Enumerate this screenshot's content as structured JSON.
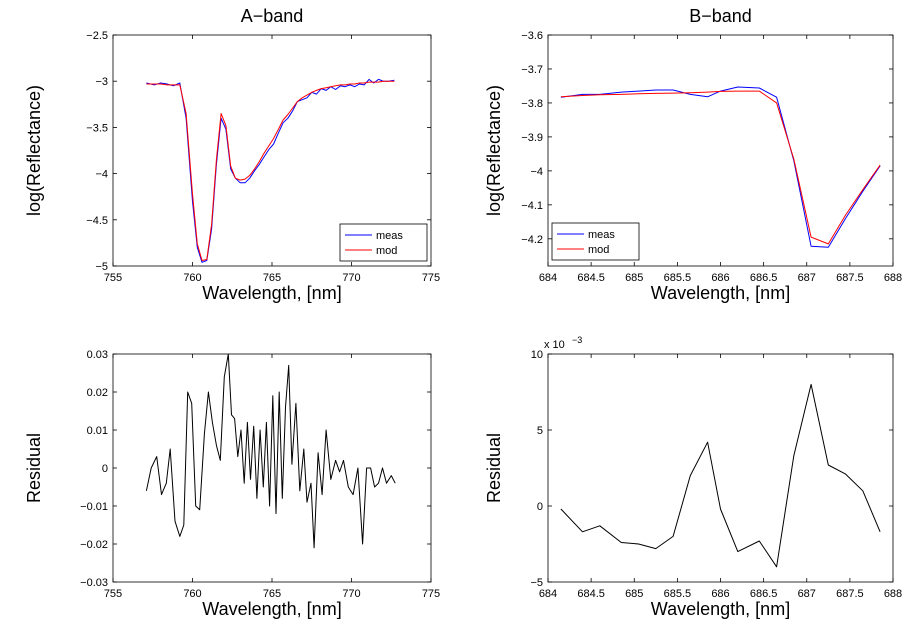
{
  "chart_data": [
    {
      "type": "line",
      "title": "A−band",
      "xlabel": "Wavelength, [nm]",
      "ylabel": "log(Reflectance)",
      "xlim": [
        755,
        775
      ],
      "ylim": [
        -5,
        -2.5
      ],
      "xticks": [
        755,
        760,
        765,
        770,
        775
      ],
      "xtick_labels": [
        "755",
        "760",
        "765",
        "770",
        "775"
      ],
      "yticks": [
        -5,
        -4.5,
        -4,
        -3.5,
        -3,
        -2.5
      ],
      "ytick_labels": [
        "−5",
        "−4.5",
        "−4",
        "−3.5",
        "−3",
        "−2.5"
      ],
      "exponent_label": "",
      "grid": false,
      "legend": "bottom-right",
      "series": [
        {
          "name": "meas",
          "color": "#0000ff",
          "x": [
            757.1,
            757.6,
            758.0,
            758.4,
            758.8,
            759.2,
            759.6,
            760.0,
            760.3,
            760.6,
            760.9,
            761.2,
            761.5,
            761.8,
            762.1,
            762.4,
            762.7,
            763.0,
            763.3,
            763.6,
            763.9,
            764.2,
            764.5,
            764.8,
            765.1,
            765.4,
            765.7,
            766.0,
            766.3,
            766.6,
            766.9,
            767.2,
            767.5,
            767.8,
            768.1,
            768.4,
            768.7,
            769.0,
            769.3,
            769.6,
            769.9,
            770.2,
            770.5,
            770.8,
            771.1,
            771.4,
            771.7,
            772.0,
            772.3,
            772.7
          ],
          "y": [
            -3.02,
            -3.04,
            -3.02,
            -3.03,
            -3.05,
            -3.02,
            -3.4,
            -4.3,
            -4.8,
            -4.96,
            -4.94,
            -4.6,
            -3.9,
            -3.4,
            -3.52,
            -3.95,
            -4.05,
            -4.1,
            -4.1,
            -4.05,
            -3.97,
            -3.9,
            -3.82,
            -3.74,
            -3.68,
            -3.56,
            -3.45,
            -3.4,
            -3.32,
            -3.22,
            -3.2,
            -3.18,
            -3.12,
            -3.14,
            -3.08,
            -3.1,
            -3.06,
            -3.09,
            -3.05,
            -3.06,
            -3.04,
            -3.06,
            -3.03,
            -3.04,
            -2.98,
            -3.02,
            -2.98,
            -3.0,
            -3.0,
            -2.99
          ]
        },
        {
          "name": "mod",
          "color": "#ff0000",
          "x": [
            757.1,
            757.6,
            758.0,
            758.4,
            758.8,
            759.2,
            759.6,
            760.0,
            760.3,
            760.6,
            760.9,
            761.2,
            761.5,
            761.8,
            762.1,
            762.4,
            762.7,
            763.0,
            763.3,
            763.6,
            763.9,
            764.2,
            764.5,
            764.8,
            765.1,
            765.4,
            765.7,
            766.0,
            766.3,
            766.6,
            766.9,
            767.2,
            767.5,
            767.8,
            768.1,
            768.4,
            768.7,
            769.0,
            769.3,
            769.6,
            769.9,
            770.2,
            770.5,
            770.8,
            771.1,
            771.4,
            771.7,
            772.0,
            772.3,
            772.7
          ],
          "y": [
            -3.03,
            -3.03,
            -3.03,
            -3.04,
            -3.04,
            -3.04,
            -3.35,
            -4.22,
            -4.76,
            -4.94,
            -4.93,
            -4.55,
            -3.85,
            -3.35,
            -3.48,
            -3.92,
            -4.05,
            -4.07,
            -4.06,
            -4.02,
            -3.95,
            -3.87,
            -3.78,
            -3.7,
            -3.62,
            -3.52,
            -3.42,
            -3.36,
            -3.29,
            -3.22,
            -3.18,
            -3.15,
            -3.12,
            -3.1,
            -3.08,
            -3.07,
            -3.06,
            -3.05,
            -3.04,
            -3.04,
            -3.03,
            -3.03,
            -3.02,
            -3.02,
            -3.01,
            -3.01,
            -3.01,
            -3.0,
            -3.0,
            -3.0
          ]
        }
      ]
    },
    {
      "type": "line",
      "title": "B−band",
      "xlabel": "Wavelength, [nm]",
      "ylabel": "log(Reflectance)",
      "xlim": [
        684,
        688
      ],
      "ylim": [
        -4.28,
        -3.6
      ],
      "xticks": [
        684,
        684.5,
        685,
        685.5,
        686,
        686.5,
        687,
        687.5,
        688
      ],
      "xtick_labels": [
        "684",
        "684.5",
        "685",
        "685.5",
        "686",
        "686.5",
        "687",
        "687.5",
        "688"
      ],
      "yticks": [
        -4.2,
        -4.1,
        -4,
        -3.9,
        -3.8,
        -3.7,
        -3.6
      ],
      "ytick_labels": [
        "−4.2",
        "−4.1",
        "−4",
        "−3.9",
        "−3.8",
        "−3.7",
        "−3.6"
      ],
      "exponent_label": "",
      "grid": false,
      "legend": "bottom-left",
      "series": [
        {
          "name": "meas",
          "color": "#0000ff",
          "x": [
            684.15,
            684.4,
            684.6,
            684.85,
            685.05,
            685.25,
            685.45,
            685.65,
            685.85,
            686.0,
            686.2,
            686.45,
            686.65,
            686.85,
            687.05,
            687.25,
            687.45,
            687.65,
            687.85
          ],
          "y": [
            -3.783,
            -3.775,
            -3.775,
            -3.768,
            -3.765,
            -3.762,
            -3.762,
            -3.775,
            -3.782,
            -3.765,
            -3.753,
            -3.756,
            -3.783,
            -3.97,
            -4.222,
            -4.225,
            -4.14,
            -4.06,
            -3.985
          ]
        },
        {
          "name": "mod",
          "color": "#ff0000",
          "x": [
            684.15,
            684.4,
            684.6,
            684.85,
            685.05,
            685.25,
            685.45,
            685.65,
            685.85,
            686.0,
            686.2,
            686.45,
            686.65,
            686.85,
            687.05,
            687.25,
            687.45,
            687.65,
            687.85
          ],
          "y": [
            -3.782,
            -3.778,
            -3.776,
            -3.775,
            -3.773,
            -3.772,
            -3.771,
            -3.77,
            -3.768,
            -3.766,
            -3.765,
            -3.765,
            -3.8,
            -3.965,
            -4.195,
            -4.215,
            -4.13,
            -4.055,
            -3.983
          ]
        }
      ]
    },
    {
      "type": "line",
      "title": "",
      "xlabel": "Wavelength, [nm]",
      "ylabel": "Residual",
      "xlim": [
        755,
        775
      ],
      "ylim": [
        -0.03,
        0.03
      ],
      "xticks": [
        755,
        760,
        765,
        770,
        775
      ],
      "xtick_labels": [
        "755",
        "760",
        "765",
        "770",
        "775"
      ],
      "yticks": [
        -0.03,
        -0.02,
        -0.01,
        0,
        0.01,
        0.02,
        0.03
      ],
      "ytick_labels": [
        "−0.03",
        "−0.02",
        "−0.01",
        "0",
        "0.01",
        "0.02",
        "0.03"
      ],
      "exponent_label": "",
      "grid": false,
      "legend": "none",
      "series": [
        {
          "color": "#000000",
          "x": [
            757.1,
            757.4,
            757.75,
            758.05,
            758.35,
            758.6,
            758.9,
            759.2,
            759.45,
            759.7,
            759.95,
            760.2,
            760.45,
            760.75,
            761.0,
            761.25,
            761.5,
            761.75,
            762.0,
            762.25,
            762.45,
            762.65,
            762.85,
            763.05,
            763.25,
            763.45,
            763.65,
            763.85,
            764.05,
            764.25,
            764.45,
            764.65,
            764.85,
            765.05,
            765.25,
            765.45,
            765.65,
            765.85,
            766.05,
            766.25,
            766.5,
            766.75,
            767.0,
            767.2,
            767.45,
            767.65,
            767.9,
            768.15,
            768.4,
            768.7,
            769.0,
            769.25,
            769.5,
            769.8,
            770.1,
            770.4,
            770.7,
            770.95,
            771.2,
            771.45,
            771.7,
            771.95,
            772.2,
            772.5,
            772.75
          ],
          "y": [
            -0.006,
            0.0,
            0.003,
            -0.007,
            -0.004,
            0.005,
            -0.014,
            -0.018,
            -0.015,
            0.02,
            0.017,
            -0.01,
            -0.011,
            0.009,
            0.02,
            0.012,
            0.006,
            0.002,
            0.024,
            0.03,
            0.014,
            0.013,
            0.003,
            0.01,
            -0.004,
            0.012,
            -0.003,
            0.011,
            -0.008,
            0.01,
            -0.005,
            0.012,
            -0.01,
            0.019,
            -0.012,
            0.02,
            -0.008,
            0.016,
            0.027,
            0.001,
            0.017,
            -0.006,
            0.005,
            -0.009,
            -0.004,
            -0.021,
            0.004,
            -0.007,
            0.01,
            -0.003,
            0.002,
            -0.001,
            0.002,
            -0.005,
            -0.007,
            0.0,
            -0.02,
            0.0,
            0.0,
            -0.005,
            -0.004,
            0.0,
            -0.004,
            -0.002,
            -0.004
          ]
        }
      ]
    },
    {
      "type": "line",
      "title": "",
      "xlabel": "Wavelength, [nm]",
      "ylabel": "Residual",
      "xlim": [
        684,
        688
      ],
      "ylim": [
        -5,
        10
      ],
      "xticks": [
        684,
        684.5,
        685,
        685.5,
        686,
        686.5,
        687,
        687.5,
        688
      ],
      "xtick_labels": [
        "684",
        "684.5",
        "685",
        "685.5",
        "686",
        "686.5",
        "687",
        "687.5",
        "688"
      ],
      "yticks": [
        -5,
        0,
        5,
        10
      ],
      "ytick_labels": [
        "−5",
        "0",
        "5",
        "10"
      ],
      "exponent_label": "x 10",
      "exponent_sup": "−3",
      "grid": false,
      "legend": "none",
      "series": [
        {
          "color": "#000000",
          "x": [
            684.15,
            684.4,
            684.6,
            684.85,
            685.05,
            685.25,
            685.45,
            685.65,
            685.85,
            686.0,
            686.2,
            686.45,
            686.65,
            686.85,
            687.05,
            687.25,
            687.45,
            687.65,
            687.85
          ],
          "y": [
            -0.2,
            -1.7,
            -1.3,
            -2.4,
            -2.5,
            -2.8,
            -2.0,
            2.0,
            4.2,
            -0.2,
            -3.0,
            -2.3,
            -4.0,
            3.3,
            8.0,
            2.7,
            2.1,
            1.0,
            -1.7
          ]
        }
      ]
    }
  ]
}
